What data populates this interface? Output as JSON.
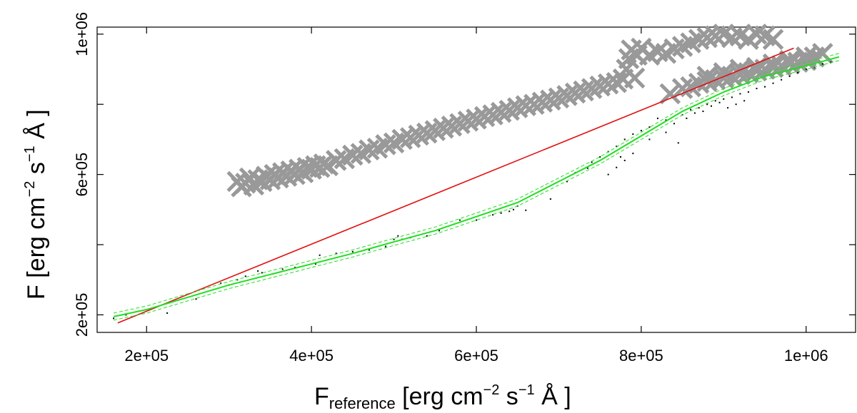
{
  "chart_data": {
    "type": "scatter",
    "title": "",
    "xlabel": {
      "main": "F",
      "subscript": "reference",
      "units_open": " [erg cm",
      "exp1": "−2",
      "mid1": " s",
      "exp2": "−1",
      "mid2": " Å",
      "units_close": " ]"
    },
    "ylabel": {
      "main": "F [erg cm",
      "exp1": "−2",
      "mid1": " s",
      "exp2": "−1",
      "mid2": " Å",
      "units_close": " ]"
    },
    "xlim": [
      140000,
      1060000
    ],
    "ylim": [
      150000,
      1020000
    ],
    "x_ticks": [
      {
        "value": 200000,
        "label": "2e+05"
      },
      {
        "value": 400000,
        "label": "4e+05"
      },
      {
        "value": 600000,
        "label": "6e+05"
      },
      {
        "value": 800000,
        "label": "8e+05"
      },
      {
        "value": 1000000,
        "label": "1e+06"
      }
    ],
    "y_ticks": [
      {
        "value": 200000,
        "label": "2e+05"
      },
      {
        "value": 400000,
        "label": ""
      },
      {
        "value": 600000,
        "label": "6e+05"
      },
      {
        "value": 800000,
        "label": ""
      },
      {
        "value": 1000000,
        "label": "1e+06"
      }
    ],
    "grid": false,
    "series": [
      {
        "kind": "cross-markers",
        "color": "#999999",
        "points": [
          [
            310000,
            580000
          ],
          [
            315000,
            565000
          ],
          [
            320000,
            575000
          ],
          [
            325000,
            590000
          ],
          [
            330000,
            570000
          ],
          [
            335000,
            585000
          ],
          [
            340000,
            580000
          ],
          [
            345000,
            595000
          ],
          [
            350000,
            585000
          ],
          [
            355000,
            600000
          ],
          [
            360000,
            590000
          ],
          [
            365000,
            605000
          ],
          [
            370000,
            595000
          ],
          [
            375000,
            610000
          ],
          [
            380000,
            600000
          ],
          [
            385000,
            615000
          ],
          [
            390000,
            605000
          ],
          [
            395000,
            620000
          ],
          [
            400000,
            615000
          ],
          [
            405000,
            625000
          ],
          [
            410000,
            620000
          ],
          [
            415000,
            630000
          ],
          [
            420000,
            625000
          ],
          [
            430000,
            640000
          ],
          [
            440000,
            645000
          ],
          [
            450000,
            655000
          ],
          [
            460000,
            660000
          ],
          [
            470000,
            670000
          ],
          [
            480000,
            675000
          ],
          [
            490000,
            685000
          ],
          [
            500000,
            690000
          ],
          [
            510000,
            700000
          ],
          [
            520000,
            705000
          ],
          [
            530000,
            712000
          ],
          [
            540000,
            718000
          ],
          [
            550000,
            725000
          ],
          [
            560000,
            732000
          ],
          [
            570000,
            738000
          ],
          [
            580000,
            745000
          ],
          [
            590000,
            752000
          ],
          [
            600000,
            758000
          ],
          [
            610000,
            765000
          ],
          [
            620000,
            770000
          ],
          [
            630000,
            777000
          ],
          [
            640000,
            783000
          ],
          [
            650000,
            790000
          ],
          [
            660000,
            796000
          ],
          [
            670000,
            800000
          ],
          [
            680000,
            806000
          ],
          [
            690000,
            812000
          ],
          [
            700000,
            818000
          ],
          [
            710000,
            825000
          ],
          [
            720000,
            832000
          ],
          [
            730000,
            838000
          ],
          [
            740000,
            845000
          ],
          [
            750000,
            852000
          ],
          [
            760000,
            858000
          ],
          [
            770000,
            862000
          ],
          [
            778000,
            872000
          ],
          [
            782000,
            900000
          ],
          [
            785000,
            930000
          ],
          [
            788000,
            955000
          ],
          [
            792000,
            875000
          ],
          [
            795000,
            940000
          ],
          [
            800000,
            960000
          ],
          [
            810000,
            940000
          ],
          [
            820000,
            950000
          ],
          [
            830000,
            945000
          ],
          [
            840000,
            958000
          ],
          [
            850000,
            965000
          ],
          [
            860000,
            975000
          ],
          [
            870000,
            985000
          ],
          [
            880000,
            990000
          ],
          [
            890000,
            995000
          ],
          [
            900000,
            1000000
          ],
          [
            910000,
            990000
          ],
          [
            920000,
            995000
          ],
          [
            930000,
            985000
          ],
          [
            940000,
            1000000
          ],
          [
            950000,
            995000
          ],
          [
            960000,
            985000
          ],
          [
            835000,
            830000
          ],
          [
            850000,
            845000
          ],
          [
            860000,
            850000
          ],
          [
            870000,
            860000
          ],
          [
            880000,
            865000
          ],
          [
            890000,
            870000
          ],
          [
            900000,
            875000
          ],
          [
            910000,
            880000
          ],
          [
            920000,
            885000
          ],
          [
            930000,
            890000
          ],
          [
            940000,
            895000
          ],
          [
            950000,
            900000
          ],
          [
            960000,
            905000
          ],
          [
            970000,
            910000
          ],
          [
            980000,
            915000
          ],
          [
            990000,
            920000
          ],
          [
            1000000,
            925000
          ],
          [
            1010000,
            935000
          ],
          [
            1020000,
            945000
          ],
          [
            880000,
            880000
          ],
          [
            900000,
            890000
          ],
          [
            920000,
            900000
          ],
          [
            940000,
            905000
          ],
          [
            960000,
            915000
          ],
          [
            980000,
            925000
          ],
          [
            1000000,
            935000
          ]
        ]
      },
      {
        "kind": "dots",
        "color": "#000000",
        "points": [
          [
            160000,
            190000
          ],
          [
            175000,
            200000
          ],
          [
            190000,
            210000
          ],
          [
            225000,
            205000
          ],
          [
            260000,
            245000
          ],
          [
            290000,
            290000
          ],
          [
            300000,
            285000
          ],
          [
            310000,
            300000
          ],
          [
            320000,
            310000
          ],
          [
            335000,
            325000
          ],
          [
            340000,
            320000
          ],
          [
            365000,
            330000
          ],
          [
            380000,
            335000
          ],
          [
            405000,
            345000
          ],
          [
            410000,
            370000
          ],
          [
            430000,
            375000
          ],
          [
            450000,
            380000
          ],
          [
            470000,
            385000
          ],
          [
            490000,
            395000
          ],
          [
            500000,
            415000
          ],
          [
            505000,
            425000
          ],
          [
            510000,
            415000
          ],
          [
            520000,
            420000
          ],
          [
            540000,
            425000
          ],
          [
            555000,
            440000
          ],
          [
            580000,
            470000
          ],
          [
            600000,
            470000
          ],
          [
            620000,
            485000
          ],
          [
            630000,
            490000
          ],
          [
            640000,
            495000
          ],
          [
            645000,
            500000
          ],
          [
            650000,
            510000
          ],
          [
            660000,
            498000
          ],
          [
            690000,
            530000
          ],
          [
            710000,
            580000
          ],
          [
            720000,
            605000
          ],
          [
            735000,
            618000
          ],
          [
            740000,
            635000
          ],
          [
            750000,
            650000
          ],
          [
            760000,
            665000
          ],
          [
            770000,
            680000
          ],
          [
            775000,
            650000
          ],
          [
            780000,
            700000
          ],
          [
            790000,
            715000
          ],
          [
            800000,
            725000
          ],
          [
            810000,
            735000
          ],
          [
            820000,
            760000
          ],
          [
            830000,
            755000
          ],
          [
            840000,
            745000
          ],
          [
            850000,
            770000
          ],
          [
            860000,
            785000
          ],
          [
            870000,
            790000
          ],
          [
            880000,
            800000
          ],
          [
            890000,
            810000
          ],
          [
            900000,
            815000
          ],
          [
            910000,
            820000
          ],
          [
            920000,
            830000
          ],
          [
            930000,
            835000
          ],
          [
            940000,
            845000
          ],
          [
            950000,
            850000
          ],
          [
            960000,
            860000
          ],
          [
            970000,
            870000
          ],
          [
            980000,
            880000
          ],
          [
            990000,
            890000
          ],
          [
            1000000,
            900000
          ],
          [
            1010000,
            905000
          ],
          [
            1020000,
            915000
          ],
          [
            1030000,
            920000
          ],
          [
            760000,
            600000
          ],
          [
            770000,
            620000
          ],
          [
            780000,
            640000
          ],
          [
            790000,
            660000
          ],
          [
            810000,
            700000
          ],
          [
            830000,
            720000
          ],
          [
            845000,
            690000
          ],
          [
            855000,
            760000
          ],
          [
            865000,
            775000
          ],
          [
            875000,
            780000
          ],
          [
            885000,
            795000
          ],
          [
            895000,
            805000
          ],
          [
            905000,
            790000
          ],
          [
            915000,
            800000
          ],
          [
            925000,
            810000
          ]
        ]
      },
      {
        "kind": "line",
        "color": "#e01010",
        "points": [
          [
            165000,
            177000
          ],
          [
            985000,
            960000
          ]
        ]
      },
      {
        "kind": "fit-curve",
        "color": "#22dd22",
        "points": [
          [
            160000,
            195000
          ],
          [
            200000,
            215000
          ],
          [
            250000,
            250000
          ],
          [
            300000,
            285000
          ],
          [
            350000,
            315000
          ],
          [
            400000,
            345000
          ],
          [
            450000,
            375000
          ],
          [
            500000,
            408000
          ],
          [
            550000,
            440000
          ],
          [
            600000,
            480000
          ],
          [
            650000,
            520000
          ],
          [
            700000,
            580000
          ],
          [
            750000,
            640000
          ],
          [
            800000,
            710000
          ],
          [
            850000,
            780000
          ],
          [
            900000,
            835000
          ],
          [
            950000,
            880000
          ],
          [
            1000000,
            910000
          ],
          [
            1040000,
            935000
          ]
        ]
      }
    ]
  }
}
